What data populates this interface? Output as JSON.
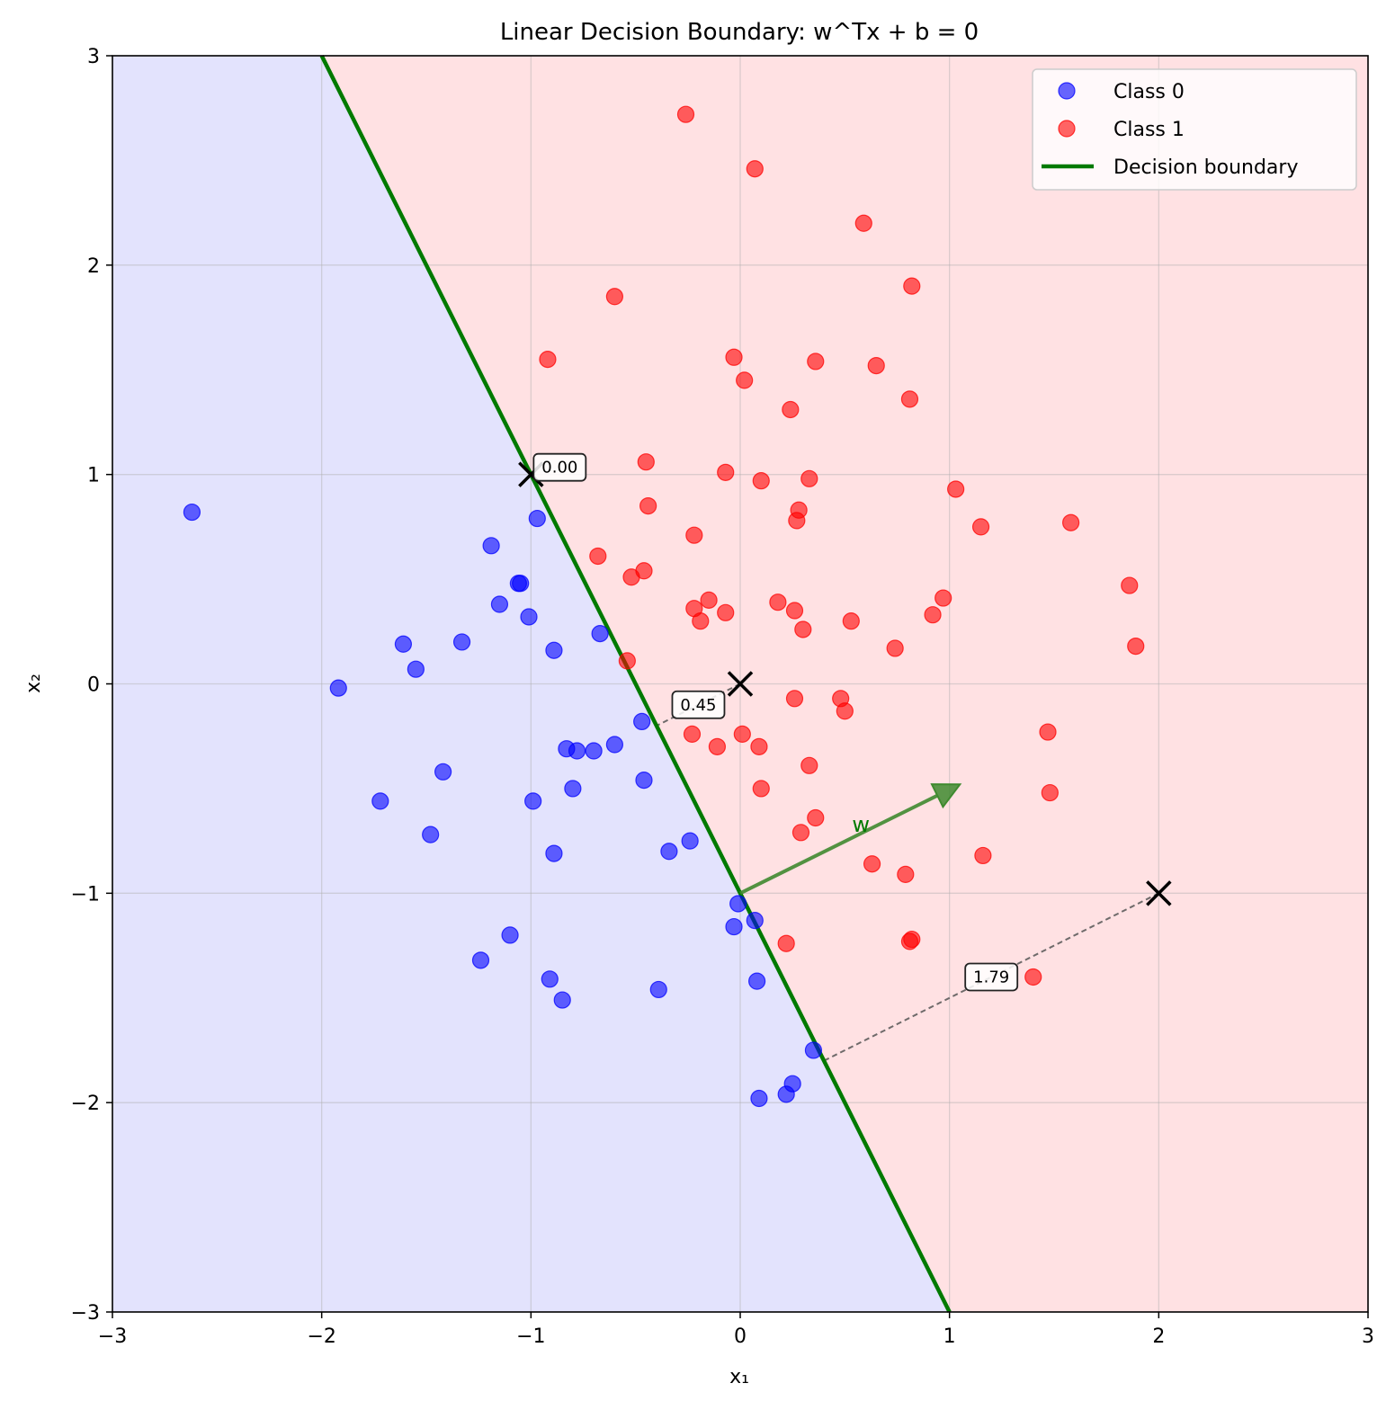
{
  "chart_data": {
    "type": "scatter",
    "title": "Linear Decision Boundary: w^Tx + b = 0",
    "xlabel": "x₁",
    "ylabel": "x₂",
    "xlim": [
      -3,
      3
    ],
    "ylim": [
      -3,
      3
    ],
    "xticks": [
      -3,
      -2,
      -1,
      0,
      1,
      2,
      3
    ],
    "yticks": [
      -3,
      -2,
      -1,
      0,
      1,
      2,
      3
    ],
    "xtick_labels": [
      "−3",
      "−2",
      "−1",
      "0",
      "1",
      "2",
      "3"
    ],
    "ytick_labels": [
      "−3",
      "−2",
      "−1",
      "0",
      "1",
      "2",
      "3"
    ],
    "grid": true,
    "legend_position": "top-right",
    "colors": {
      "class0": "#0000ff",
      "class1": "#ff0000",
      "boundary": "#007a00",
      "region0": "#e3e3fd",
      "region1": "#ffe1e3",
      "w_arrow": "#3f8a2f"
    },
    "legend": [
      {
        "label": "Class 0",
        "kind": "marker",
        "color": "#0000ff"
      },
      {
        "label": "Class 1",
        "kind": "marker",
        "color": "#ff0000"
      },
      {
        "label": "Decision boundary",
        "kind": "line",
        "color": "#007a00"
      }
    ],
    "boundary": {
      "x1": -2,
      "y1": 3,
      "x2": 1,
      "y2": -3
    },
    "weight_vector": {
      "label": "w",
      "from": [
        0,
        -1
      ],
      "to": [
        1.05,
        -0.48
      ]
    },
    "query_points": [
      {
        "x": -1,
        "y": 1,
        "distance_label": "0.00",
        "foot": [
          -1,
          1
        ]
      },
      {
        "x": 0,
        "y": 0,
        "distance_label": "0.45",
        "foot": [
          -0.4,
          -0.2
        ]
      },
      {
        "x": 2,
        "y": -1,
        "distance_label": "1.79",
        "foot": [
          0.4,
          -1.8
        ]
      }
    ],
    "series": [
      {
        "name": "Class 0",
        "color": "#0000ff",
        "points": [
          [
            -2.62,
            0.82
          ],
          [
            -1.92,
            -0.02
          ],
          [
            -1.72,
            -0.56
          ],
          [
            -1.61,
            0.19
          ],
          [
            -1.55,
            0.07
          ],
          [
            -1.48,
            -0.72
          ],
          [
            -1.42,
            -0.42
          ],
          [
            -1.33,
            0.2
          ],
          [
            -1.24,
            -1.32
          ],
          [
            -1.19,
            0.66
          ],
          [
            -1.15,
            0.38
          ],
          [
            -1.1,
            -1.2
          ],
          [
            -1.06,
            0.48
          ],
          [
            -1.05,
            0.48
          ],
          [
            -1.01,
            0.32
          ],
          [
            -0.99,
            -0.56
          ],
          [
            -0.97,
            0.79
          ],
          [
            -0.91,
            -1.41
          ],
          [
            -0.89,
            0.16
          ],
          [
            -0.89,
            -0.81
          ],
          [
            -0.85,
            -1.51
          ],
          [
            -0.83,
            -0.31
          ],
          [
            -0.8,
            -0.5
          ],
          [
            -0.78,
            -0.32
          ],
          [
            -0.7,
            -0.32
          ],
          [
            -0.67,
            0.24
          ],
          [
            -0.6,
            -0.29
          ],
          [
            -0.47,
            -0.18
          ],
          [
            -0.46,
            -0.46
          ],
          [
            -0.39,
            -1.46
          ],
          [
            -0.34,
            -0.8
          ],
          [
            -0.24,
            -0.75
          ],
          [
            -0.03,
            -1.16
          ],
          [
            -0.01,
            -1.05
          ],
          [
            0.07,
            -1.13
          ],
          [
            0.08,
            -1.42
          ],
          [
            0.09,
            -1.98
          ],
          [
            0.22,
            -1.96
          ],
          [
            0.25,
            -1.91
          ],
          [
            0.35,
            -1.75
          ]
        ]
      },
      {
        "name": "Class 1",
        "color": "#ff0000",
        "points": [
          [
            -0.26,
            2.72
          ],
          [
            0.07,
            2.46
          ],
          [
            0.59,
            2.2
          ],
          [
            -0.6,
            1.85
          ],
          [
            0.82,
            1.9
          ],
          [
            -0.92,
            1.55
          ],
          [
            -0.03,
            1.56
          ],
          [
            0.36,
            1.54
          ],
          [
            0.65,
            1.52
          ],
          [
            0.02,
            1.45
          ],
          [
            0.81,
            1.36
          ],
          [
            0.24,
            1.31
          ],
          [
            -0.45,
            1.06
          ],
          [
            -0.07,
            1.01
          ],
          [
            0.33,
            0.98
          ],
          [
            0.1,
            0.97
          ],
          [
            1.03,
            0.93
          ],
          [
            -0.44,
            0.85
          ],
          [
            0.28,
            0.83
          ],
          [
            0.27,
            0.78
          ],
          [
            1.15,
            0.75
          ],
          [
            1.58,
            0.77
          ],
          [
            -0.22,
            0.71
          ],
          [
            -0.68,
            0.61
          ],
          [
            -0.46,
            0.54
          ],
          [
            -0.52,
            0.51
          ],
          [
            1.86,
            0.47
          ],
          [
            0.97,
            0.41
          ],
          [
            -0.15,
            0.4
          ],
          [
            0.18,
            0.39
          ],
          [
            -0.22,
            0.36
          ],
          [
            0.26,
            0.35
          ],
          [
            -0.07,
            0.34
          ],
          [
            0.92,
            0.33
          ],
          [
            -0.19,
            0.3
          ],
          [
            0.53,
            0.3
          ],
          [
            0.3,
            0.26
          ],
          [
            1.89,
            0.18
          ],
          [
            0.74,
            0.17
          ],
          [
            -0.54,
            0.11
          ],
          [
            0.26,
            -0.07
          ],
          [
            0.48,
            -0.07
          ],
          [
            0.5,
            -0.13
          ],
          [
            1.47,
            -0.23
          ],
          [
            -0.23,
            -0.24
          ],
          [
            0.01,
            -0.24
          ],
          [
            -0.11,
            -0.3
          ],
          [
            0.09,
            -0.3
          ],
          [
            0.33,
            -0.39
          ],
          [
            0.1,
            -0.5
          ],
          [
            1.48,
            -0.52
          ],
          [
            0.36,
            -0.64
          ],
          [
            0.29,
            -0.71
          ],
          [
            1.16,
            -0.82
          ],
          [
            0.63,
            -0.86
          ],
          [
            0.79,
            -0.91
          ],
          [
            0.22,
            -1.24
          ],
          [
            0.82,
            -1.22
          ],
          [
            0.81,
            -1.23
          ],
          [
            1.4,
            -1.4
          ]
        ]
      }
    ]
  }
}
